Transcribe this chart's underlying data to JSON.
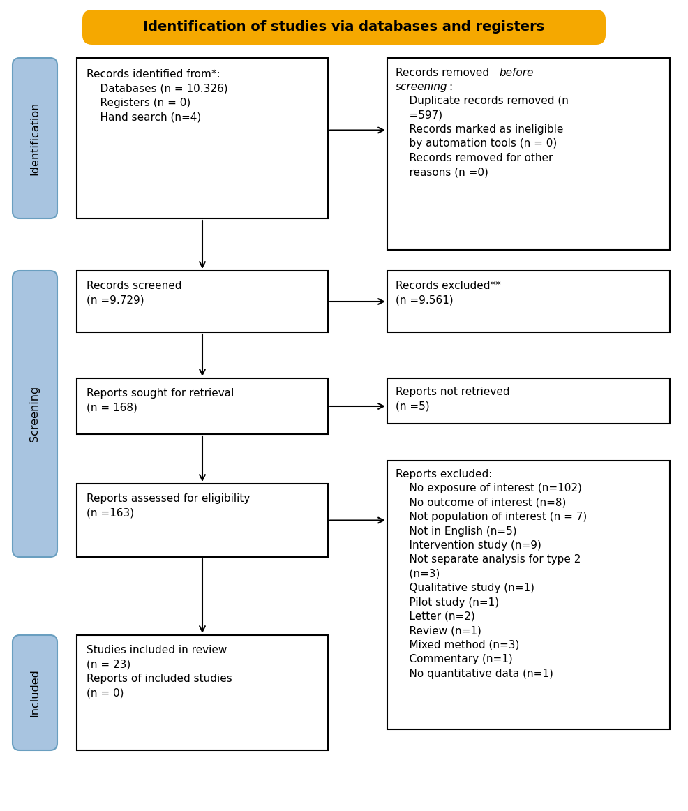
{
  "title": "Identification of studies via databases and registers",
  "title_bg": "#F5A800",
  "title_text_color": "#000000",
  "sidebar_fill_color": "#A8C4E0",
  "sidebar_border_color": "#6A9FC0",
  "arrow_color": "#000000",
  "box1_text": "Records identified from*:\n    Databases (n = 10.326)\n    Registers (n = 0)\n    Hand search (n=4)",
  "box2_text": "Records screened\n(n =9.729)",
  "box3_text": "Reports sought for retrieval\n(n = 168)",
  "box4_text": "Reports assessed for eligibility\n(n =163)",
  "box5_text": "Studies included in review\n(n = 23)\nReports of included studies\n(n = 0)",
  "right1_text_plain": "    Duplicate records removed (n\n    =597)\n    Records marked as ineligible\n    by automation tools (n = 0)\n    Records removed for other\n    reasons (n =0)",
  "right2_text": "Records excluded**\n(n =9.561)",
  "right3_text": "Reports not retrieved\n(n =5)",
  "right4_text": "Reports excluded:\n    No exposure of interest (n=102)\n    No outcome of interest (n=8)\n    Not population of interest (n = 7)\n    Not in English (n=5)\n    Intervention study (n=9)\n    Not separate analysis for type 2\n    (n=3)\n    Qualitative study (n=1)\n    Pilot study (n=1)\n    Letter (n=2)\n    Review (n=1)\n    Mixed method (n=3)\n    Commentary (n=1)\n    No quantitative data (n=1)"
}
